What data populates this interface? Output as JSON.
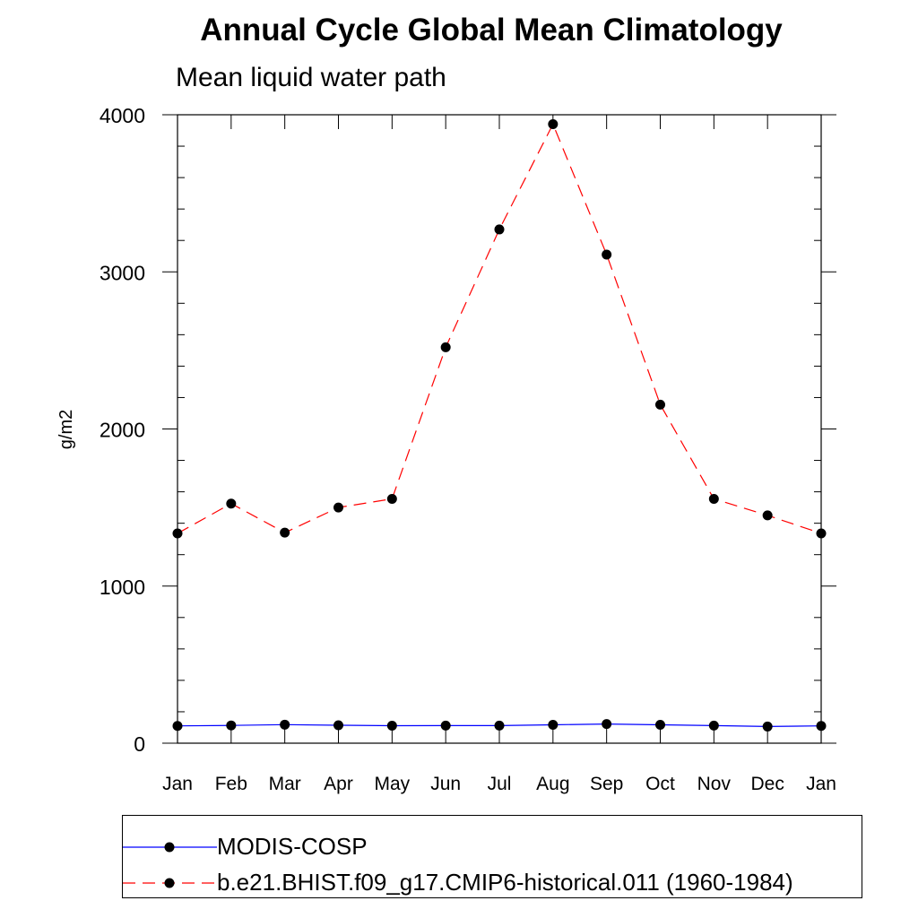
{
  "chart_data": {
    "type": "line",
    "title": "Annual Cycle Global Mean Climatology",
    "subtitle": "Mean liquid water path",
    "xlabel": "",
    "ylabel": "g/m2",
    "ylim": [
      0,
      4000
    ],
    "yticks": [
      0,
      1000,
      2000,
      3000,
      4000
    ],
    "categories": [
      "Jan",
      "Feb",
      "Mar",
      "Apr",
      "May",
      "Jun",
      "Jul",
      "Aug",
      "Sep",
      "Oct",
      "Nov",
      "Dec",
      "Jan"
    ],
    "grid": false,
    "legend_position": "bottom",
    "series": [
      {
        "name": "MODIS-COSP",
        "color": "#0000ff",
        "line_style": "solid",
        "marker": "filled-circle",
        "values": [
          110,
          113,
          118,
          114,
          111,
          112,
          112,
          117,
          122,
          117,
          112,
          106,
          110
        ]
      },
      {
        "name": "b.e21.BHIST.f09_g17.CMIP6-historical.011 (1960-1984)",
        "color": "#ff0000",
        "line_style": "dashed",
        "marker": "filled-circle",
        "values": [
          1335,
          1525,
          1340,
          1500,
          1555,
          2520,
          3270,
          3940,
          3110,
          2155,
          1555,
          1450,
          1335
        ]
      }
    ]
  }
}
